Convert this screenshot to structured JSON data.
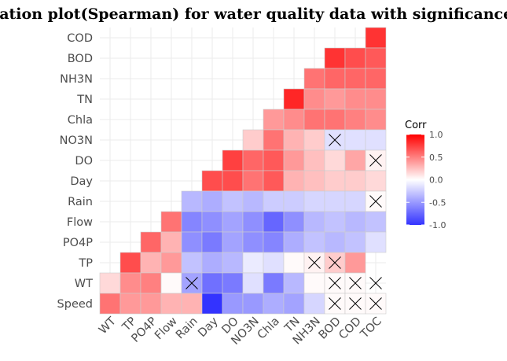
{
  "chart_data": {
    "type": "heatmap",
    "title": "lation plot(Spearman) for water quality data with significance level (Gwangsa",
    "x_labels": [
      "WT",
      "TP",
      "PO4P",
      "Flow",
      "Rain",
      "Day",
      "DO",
      "NO3N",
      "Chla",
      "TN",
      "NH3N",
      "BOD",
      "COD",
      "TOC"
    ],
    "y_labels": [
      "COD",
      "BOD",
      "NH3N",
      "TN",
      "Chla",
      "NO3N",
      "DO",
      "Day",
      "Rain",
      "Flow",
      "PO4P",
      "TP",
      "WT",
      "Speed"
    ],
    "values": [
      [
        null,
        null,
        null,
        null,
        null,
        null,
        null,
        null,
        null,
        null,
        null,
        null,
        null,
        0.8
      ],
      [
        null,
        null,
        null,
        null,
        null,
        null,
        null,
        null,
        null,
        null,
        null,
        0.8,
        0.7,
        0.65
      ],
      [
        null,
        null,
        null,
        null,
        null,
        null,
        null,
        null,
        null,
        null,
        0.55,
        0.6,
        0.6,
        0.6
      ],
      [
        null,
        null,
        null,
        null,
        null,
        null,
        null,
        null,
        null,
        0.85,
        0.45,
        0.4,
        0.45,
        0.45
      ],
      [
        null,
        null,
        null,
        null,
        null,
        null,
        null,
        null,
        0.4,
        0.45,
        0.55,
        0.55,
        0.5,
        0.45
      ],
      [
        null,
        null,
        null,
        null,
        null,
        null,
        null,
        0.2,
        0.55,
        0.3,
        0.2,
        -0.15,
        -0.15,
        -0.15
      ],
      [
        null,
        null,
        null,
        null,
        null,
        null,
        0.75,
        0.6,
        0.65,
        0.4,
        0.25,
        0.15,
        0.35,
        0.05
      ],
      [
        null,
        null,
        null,
        null,
        null,
        0.7,
        0.7,
        0.55,
        0.65,
        0.3,
        0.25,
        0.2,
        0.2,
        0.15
      ],
      [
        null,
        null,
        null,
        null,
        -0.35,
        -0.4,
        -0.3,
        -0.35,
        -0.25,
        -0.25,
        -0.2,
        -0.2,
        -0.2,
        0.02
      ],
      [
        null,
        null,
        null,
        0.55,
        -0.6,
        -0.55,
        -0.45,
        -0.55,
        -0.75,
        -0.55,
        -0.35,
        -0.3,
        -0.35,
        -0.3
      ],
      [
        null,
        null,
        0.6,
        0.3,
        -0.55,
        -0.65,
        -0.45,
        -0.55,
        -0.6,
        -0.4,
        -0.3,
        -0.35,
        -0.3,
        -0.15
      ],
      [
        null,
        0.7,
        0.3,
        0.4,
        -0.3,
        -0.4,
        -0.35,
        -0.1,
        -0.15,
        0.02,
        0.05,
        0.2,
        0.4,
        null
      ],
      [
        0.15,
        0.45,
        0.5,
        0.02,
        -0.45,
        -0.7,
        -0.65,
        -0.15,
        -0.65,
        -0.35,
        0.02,
        0.02,
        0.02,
        null
      ],
      [
        0.55,
        0.4,
        0.4,
        0.3,
        0.3,
        -1.0,
        -0.5,
        -0.5,
        -0.4,
        -0.45,
        -0.2,
        0.02,
        0.02,
        0.02
      ]
    ],
    "insignificant": [
      [
        5,
        11
      ],
      [
        6,
        13
      ],
      [
        8,
        13
      ],
      [
        11,
        10
      ],
      [
        11,
        11
      ],
      [
        12,
        4
      ],
      [
        12,
        11
      ],
      [
        12,
        12
      ],
      [
        12,
        13
      ],
      [
        13,
        11
      ],
      [
        13,
        12
      ],
      [
        13,
        13
      ]
    ],
    "legend": {
      "title": "Corr",
      "ticks": [
        "1.0",
        "0.5",
        "0.0",
        "-0.5",
        "-1.0"
      ],
      "tick_values": [
        1.0,
        0.5,
        0.0,
        -0.5,
        -1.0
      ],
      "placement": "right"
    },
    "colors": {
      "low": "#3333ff",
      "mid": "#ffffff",
      "high": "#ff0000",
      "grid": "#ebebeb",
      "cell_border": "#cccccc"
    }
  }
}
